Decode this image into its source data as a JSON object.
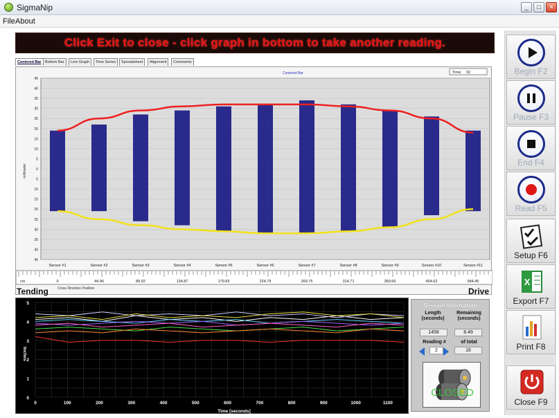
{
  "window": {
    "title": "SigmaNip",
    "min": "_",
    "max": "□",
    "close": "×"
  },
  "menu": {
    "items": [
      "File",
      "About"
    ]
  },
  "banner": {
    "text": "Click Exit to close - click graph in bottom to take another reading."
  },
  "tabs": [
    "Centered Bar",
    "Bottom Bar",
    "Line Graph",
    "Time Series",
    "Spreadsheet",
    "Alignment",
    "Comments"
  ],
  "graph": {
    "legend_text": "Centered Bar",
    "time_label": "Time:",
    "time_value": "32",
    "ylabel": "millimeter",
    "xlabel": "Cross Direction Position",
    "tending": "Tending",
    "drive": "Drive"
  },
  "chart_data": [
    {
      "type": "bar",
      "title": "Centered Bar",
      "ylabel": "millimeter",
      "y_ticks": [
        "45",
        "40",
        "35",
        "30",
        "25",
        "20",
        "15",
        "10",
        "5",
        "0",
        "5",
        "10",
        "15",
        "20",
        "25",
        "30",
        "35",
        "40",
        "45"
      ],
      "categories": [
        "Sensor #1",
        "Sensor #2",
        "Sensor #3",
        "Sensor #4",
        "Sensor #5",
        "Sensor #6",
        "Sensor #7",
        "Sensor #8",
        "Sensor #9",
        "Sensor #10",
        "Sensor #11"
      ],
      "positions": [
        "0",
        "44.96",
        "89.92",
        "134.87",
        "179.83",
        "224.79",
        "269.75",
        "314.71",
        "359.66",
        "404.62",
        "584.45"
      ],
      "upper": [
        19,
        22,
        27,
        29,
        31,
        32,
        34,
        32,
        29,
        26,
        19
      ],
      "lower": [
        -21,
        -21,
        -26,
        -28,
        -31,
        -32,
        -32,
        -31,
        -29,
        -23,
        -21
      ],
      "upper_curve": [
        19,
        25,
        29,
        31,
        32,
        32,
        32,
        31,
        29,
        25,
        18
      ],
      "lower_curve": [
        -21,
        -25,
        -28,
        -30,
        -31,
        -32,
        -32,
        -31,
        -29,
        -25,
        -20
      ],
      "ylim": [
        -45,
        45
      ],
      "bar_color": "#2a2a8c",
      "upper_curve_color": "#ee2020",
      "lower_curve_color": "#f2e21a"
    },
    {
      "type": "line",
      "title": "",
      "xlabel": "Time [seconds]",
      "ylabel": "Inches",
      "x_ticks": [
        "0",
        "100",
        "200",
        "300",
        "400",
        "500",
        "600",
        "700",
        "800",
        "900",
        "1000",
        "1100"
      ],
      "y_ticks": [
        "0",
        "1",
        "2",
        "3",
        "4",
        "5"
      ],
      "xlim": [
        0,
        1150
      ],
      "ylim": [
        0,
        5
      ],
      "series": [
        {
          "color": "#ffffff",
          "values": [
            4.1,
            4.2,
            4.0,
            4.3,
            4.1,
            4.2,
            4.0,
            4.2,
            4.1,
            4.3,
            4.1,
            4.2
          ]
        },
        {
          "color": "#d0d0ff",
          "values": [
            4.4,
            4.3,
            4.5,
            4.3,
            4.4,
            4.3,
            4.5,
            4.3,
            4.4,
            4.2,
            4.4,
            4.3
          ]
        },
        {
          "color": "#e8e040",
          "values": [
            4.2,
            4.3,
            4.1,
            4.4,
            4.2,
            4.3,
            4.2,
            4.4,
            4.5,
            4.3,
            4.4,
            4.2
          ]
        },
        {
          "color": "#60d0ff",
          "values": [
            4.0,
            4.1,
            4.0,
            3.9,
            4.1,
            4.0,
            4.1,
            3.9,
            4.0,
            4.1,
            4.0,
            3.9
          ]
        },
        {
          "color": "#a060ff",
          "values": [
            3.9,
            3.8,
            3.9,
            4.0,
            3.9,
            4.0,
            3.8,
            3.9,
            4.0,
            3.9,
            3.8,
            3.9
          ]
        },
        {
          "color": "#50e050",
          "values": [
            3.6,
            3.7,
            3.6,
            3.5,
            3.7,
            3.6,
            3.5,
            3.6,
            3.7,
            3.5,
            3.6,
            3.7
          ]
        },
        {
          "color": "#ff8030",
          "values": [
            3.4,
            3.5,
            3.4,
            3.6,
            3.5,
            3.4,
            3.5,
            3.6,
            3.5,
            3.4,
            3.6,
            3.5
          ]
        },
        {
          "color": "#ff3030",
          "values": [
            3.2,
            2.9,
            3.0,
            3.0,
            2.9,
            3.0,
            3.0,
            2.9,
            3.0,
            3.0,
            3.0,
            2.9
          ]
        },
        {
          "color": "#ff60c0",
          "values": [
            3.8,
            3.9,
            3.7,
            3.8,
            3.9,
            3.7,
            3.8,
            3.9,
            3.8,
            3.7,
            3.9,
            3.8
          ]
        }
      ]
    }
  ],
  "session": {
    "title": "Session Information",
    "length_label": "Length (seconds)",
    "remaining_label": "Remaining (seconds)",
    "length_value": "1458",
    "remaining_value": "8.49",
    "reading_label": "Reading #",
    "of_total_label": "of total",
    "reading_value": "2",
    "total_value": "16",
    "status_text": "CLOSED"
  },
  "toolbar": {
    "begin": "Begin F2",
    "pause": "Pause F3",
    "end": "End F4",
    "read": "Read F5",
    "setup": "Setup F6",
    "export": "Export F7",
    "print": "Print F8",
    "close": "Close F9"
  }
}
